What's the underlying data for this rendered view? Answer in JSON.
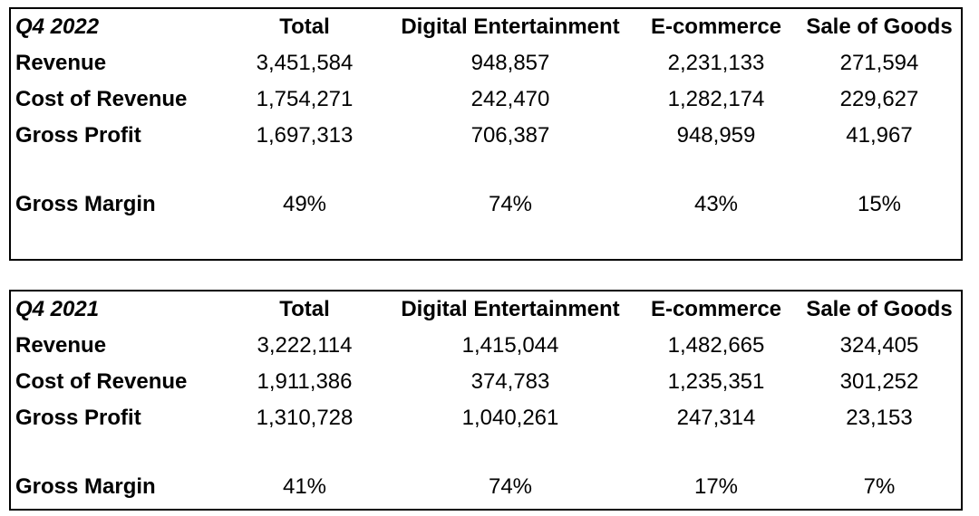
{
  "columns": [
    "Total",
    "Digital Entertainment",
    "E-commerce",
    "Sale of Goods"
  ],
  "tables": [
    {
      "title": "Q4 2022",
      "rows": [
        {
          "label": "Revenue",
          "values": [
            "3,451,584",
            "948,857",
            "2,231,133",
            "271,594"
          ]
        },
        {
          "label": "Cost of Revenue",
          "values": [
            "1,754,271",
            "242,470",
            "1,282,174",
            "229,627"
          ]
        },
        {
          "label": "Gross Profit",
          "values": [
            "1,697,313",
            "706,387",
            "948,959",
            "41,967"
          ]
        }
      ],
      "margin": {
        "label": "Gross Margin",
        "values": [
          "49%",
          "74%",
          "43%",
          "15%"
        ]
      }
    },
    {
      "title": "Q4 2021",
      "rows": [
        {
          "label": "Revenue",
          "values": [
            "3,222,114",
            "1,415,044",
            "1,482,665",
            "324,405"
          ]
        },
        {
          "label": "Cost of Revenue",
          "values": [
            "1,911,386",
            "374,783",
            "1,235,351",
            "301,252"
          ]
        },
        {
          "label": "Gross Profit",
          "values": [
            "1,310,728",
            "1,040,261",
            "247,314",
            "23,153"
          ]
        }
      ],
      "margin": {
        "label": "Gross Margin",
        "values": [
          "41%",
          "74%",
          "17%",
          "7%"
        ]
      }
    }
  ]
}
